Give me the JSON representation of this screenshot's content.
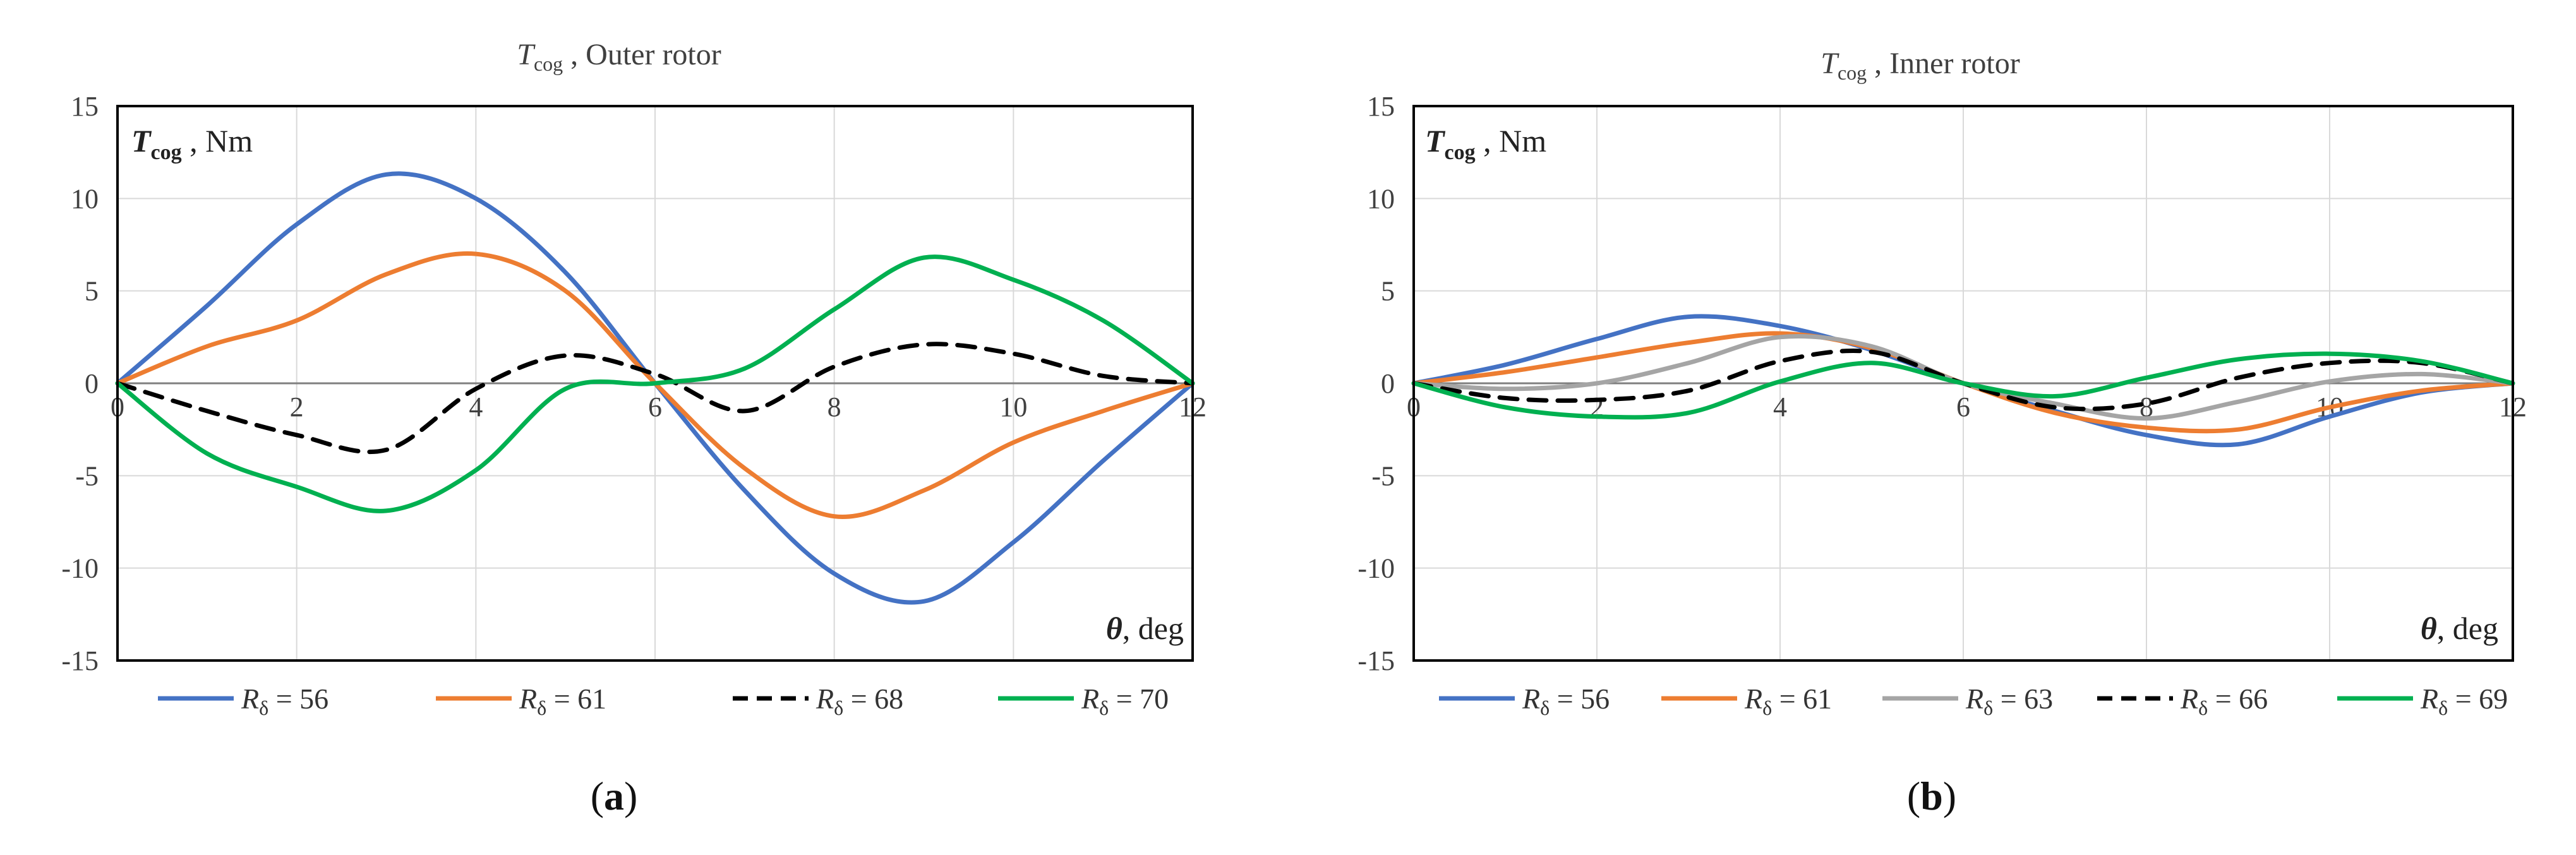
{
  "chart_data": [
    {
      "type": "line",
      "title": "T_cog , Outer rotor",
      "title_main": "T",
      "title_sub": "cog",
      "title_rest": " , Outer rotor",
      "ylabel_main": "T",
      "ylabel_sub": "cog",
      "ylabel_rest": " , Nm",
      "xlabel_main": "θ",
      "xlabel_rest": ", deg",
      "xlim": [
        0,
        12
      ],
      "ylim": [
        -15,
        15
      ],
      "xticks": [
        "0",
        "2",
        "4",
        "6",
        "8",
        "10",
        "12"
      ],
      "yticks": [
        "15",
        "10",
        "5",
        "0",
        "-5",
        "-10",
        "-15"
      ],
      "caption": {
        "open": "(",
        "letter": "a",
        "close": ")"
      },
      "x": [
        0,
        1,
        2,
        3,
        4,
        5,
        6,
        7,
        8,
        9,
        10,
        11,
        12
      ],
      "series": [
        {
          "name": "R_δ = 56",
          "label_main": "R",
          "label_sub": "δ",
          "label_rest": " = 56",
          "color": "#4472c4",
          "dash": "solid",
          "values": [
            0,
            4.2,
            8.6,
            11.3,
            10.0,
            6.0,
            0,
            -5.8,
            -10.3,
            -11.8,
            -8.6,
            -4.2,
            0
          ]
        },
        {
          "name": "R_δ = 61",
          "label_main": "R",
          "label_sub": "δ",
          "label_rest": " = 61",
          "color": "#ed7d31",
          "dash": "solid",
          "values": [
            0,
            2.0,
            3.4,
            5.9,
            7.0,
            5.0,
            0,
            -4.6,
            -7.2,
            -5.8,
            -3.2,
            -1.5,
            0
          ]
        },
        {
          "name": "R_δ = 68",
          "label_main": "R",
          "label_sub": "δ",
          "label_rest": " = 68",
          "color": "#000000",
          "dash": "dashed",
          "values": [
            0,
            -1.5,
            -2.8,
            -3.6,
            -0.3,
            1.5,
            0.5,
            -1.5,
            0.9,
            2.1,
            1.6,
            0.4,
            0
          ]
        },
        {
          "name": "R_δ = 70",
          "label_main": "R",
          "label_sub": "δ",
          "label_rest": " = 70",
          "color": "#00b050",
          "dash": "solid",
          "values": [
            0,
            -3.8,
            -5.6,
            -6.9,
            -4.7,
            -0.3,
            0,
            0.8,
            4.0,
            6.8,
            5.6,
            3.4,
            0
          ]
        }
      ]
    },
    {
      "type": "line",
      "title": "T_cog , Inner rotor",
      "title_main": "T",
      "title_sub": "cog",
      "title_rest": " , Inner rotor",
      "ylabel_main": "T",
      "ylabel_sub": "cog",
      "ylabel_rest": " , Nm",
      "xlabel_main": "θ",
      "xlabel_rest": ", deg",
      "xlim": [
        0,
        12
      ],
      "ylim": [
        -15,
        15
      ],
      "xticks": [
        "0",
        "2",
        "4",
        "6",
        "8",
        "10",
        "12"
      ],
      "yticks": [
        "15",
        "10",
        "5",
        "0",
        "-5",
        "-10",
        "-15"
      ],
      "caption": {
        "open": "(",
        "letter": "b",
        "close": ")"
      },
      "x": [
        0,
        1,
        2,
        3,
        4,
        5,
        6,
        7,
        8,
        9,
        10,
        11,
        12
      ],
      "series": [
        {
          "name": "R_δ = 56",
          "label_main": "R",
          "label_sub": "δ",
          "label_rest": " = 56",
          "color": "#4472c4",
          "dash": "solid",
          "values": [
            0,
            1.0,
            2.4,
            3.6,
            3.1,
            1.8,
            0,
            -1.5,
            -2.8,
            -3.3,
            -1.8,
            -0.5,
            0
          ]
        },
        {
          "name": "R_δ = 61",
          "label_main": "R",
          "label_sub": "δ",
          "label_rest": " = 61",
          "color": "#ed7d31",
          "dash": "solid",
          "values": [
            0,
            0.6,
            1.4,
            2.2,
            2.7,
            1.9,
            0,
            -1.6,
            -2.4,
            -2.5,
            -1.3,
            -0.4,
            0
          ]
        },
        {
          "name": "R_δ = 63",
          "label_main": "R",
          "label_sub": "δ",
          "label_rest": " = 63",
          "color": "#a5a5a5",
          "dash": "solid",
          "values": [
            0,
            -0.3,
            0.0,
            1.1,
            2.5,
            2.0,
            0,
            -1.1,
            -1.9,
            -1.0,
            0.1,
            0.5,
            0
          ]
        },
        {
          "name": "R_δ = 66",
          "label_main": "R",
          "label_sub": "δ",
          "label_rest": " = 66",
          "color": "#000000",
          "dash": "dashed",
          "values": [
            0,
            -0.8,
            -0.9,
            -0.4,
            1.2,
            1.7,
            0,
            -1.3,
            -1.1,
            0.3,
            1.1,
            1.1,
            0
          ]
        },
        {
          "name": "R_δ = 69",
          "label_main": "R",
          "label_sub": "δ",
          "label_rest": " = 69",
          "color": "#00b050",
          "dash": "solid",
          "values": [
            0,
            -1.3,
            -1.8,
            -1.6,
            0.1,
            1.1,
            0,
            -0.7,
            0.3,
            1.3,
            1.6,
            1.2,
            0
          ]
        }
      ]
    }
  ]
}
